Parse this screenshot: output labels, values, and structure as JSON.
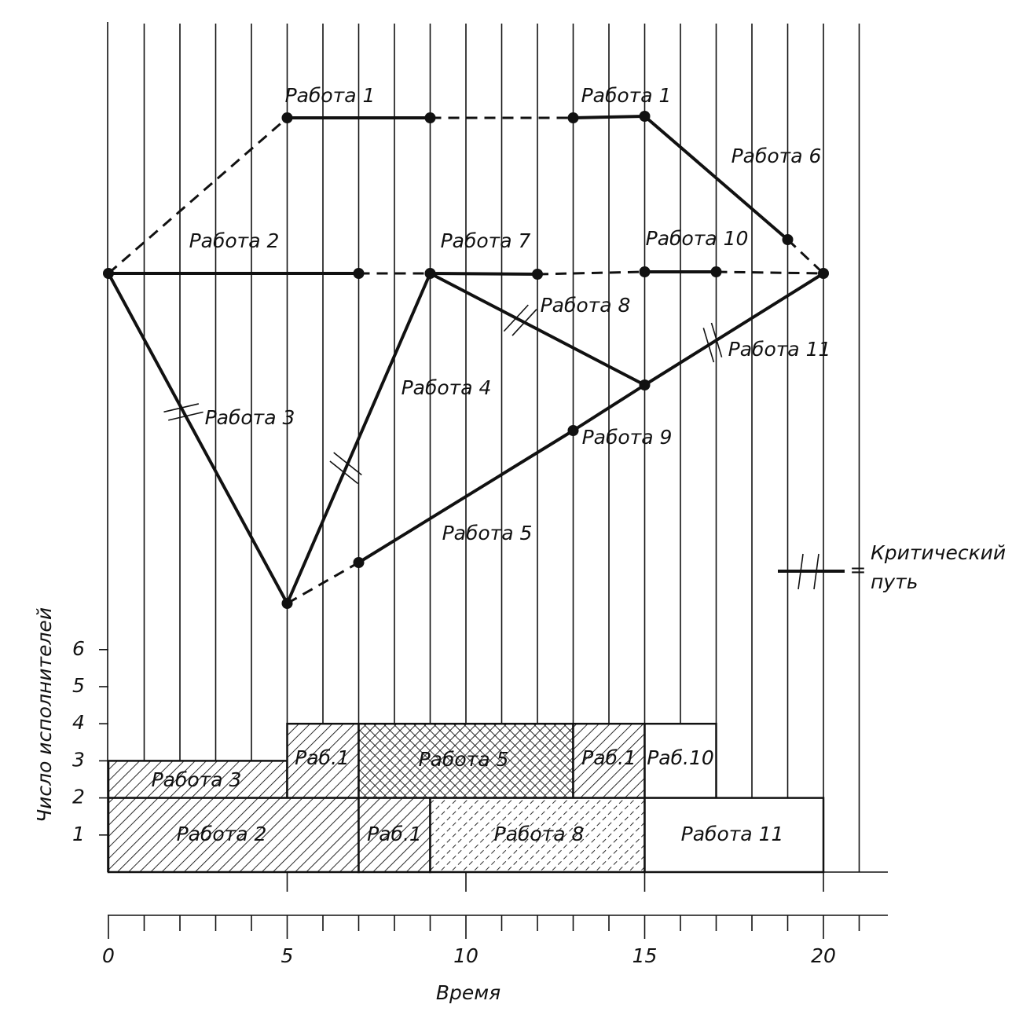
{
  "network": {
    "edge_labels": [
      "Работа 1",
      "Работа 1",
      "Работа 6",
      "Работа 2",
      "Работа 7",
      "Работа 10",
      "Работа 8",
      "Работа 11",
      "Работа 4",
      "Работа 3",
      "Работа 9",
      "Работа 5"
    ]
  },
  "histogram": {
    "blocks": [
      "Работа 3",
      "Раб.1",
      "Работа 5",
      "Раб.1",
      "Раб.10",
      "Работа 2",
      "Раб.1",
      "Работа 8",
      "Работа 11"
    ]
  },
  "y_axis": {
    "title": "Число исполнителей",
    "ticks": [
      1,
      2,
      3,
      4,
      5,
      6
    ]
  },
  "x_axis": {
    "title": "Время",
    "ticks": [
      0,
      5,
      10,
      15,
      20
    ]
  },
  "legend": {
    "symbol": "=",
    "line1": "Критический",
    "line2": "путь"
  }
}
